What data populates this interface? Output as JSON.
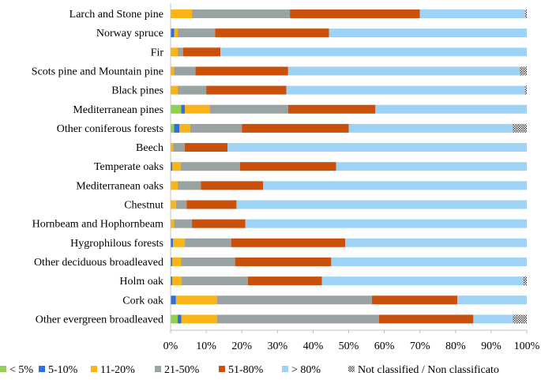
{
  "chart_data": {
    "type": "bar",
    "orientation": "horizontal",
    "stacked": "100%",
    "categories": [
      "Larch and Stone pine",
      "Norway spruce",
      "Fir",
      "Scots pine and Mountain pine",
      "Black pines",
      "Mediterranean pines",
      "Other coniferous forests",
      "Beech",
      "Temperate oaks",
      "Mediterranean oaks",
      "Chestnut",
      "Hornbeam and Hophornbeam",
      "Hygrophilous forests",
      "Other deciduous broadleaved",
      "Holm oak",
      "Cork oak",
      "Other evergreen broadleaved"
    ],
    "series": [
      {
        "name": "< 5%",
        "color": "#92d050",
        "values": [
          0,
          0,
          0,
          0,
          0,
          3,
          1,
          0,
          0,
          0,
          0,
          0,
          0,
          0,
          0,
          0,
          2
        ]
      },
      {
        "name": "5-10%",
        "color": "#2e6fe0",
        "values": [
          0,
          1,
          0,
          0,
          0,
          1,
          1.5,
          0,
          0.5,
          0,
          0,
          0,
          0.7,
          0.5,
          0.5,
          1.5,
          1
        ]
      },
      {
        "name": "11-20%",
        "color": "#fbb416",
        "values": [
          6,
          1,
          2,
          1,
          2,
          7,
          3,
          0.7,
          2.3,
          2,
          1.5,
          1,
          3.3,
          2.4,
          2.6,
          11.5,
          10
        ]
      },
      {
        "name": "21-50%",
        "color": "#9aa3a4",
        "values": [
          27.5,
          10.5,
          1.5,
          6,
          8,
          22,
          14.5,
          3.3,
          16.7,
          6.5,
          3,
          5,
          13,
          15.2,
          18.6,
          43.5,
          45.5
        ]
      },
      {
        "name": "51-80%",
        "color": "#c9510c",
        "values": [
          36.5,
          32,
          10.5,
          26,
          22.5,
          24.5,
          30,
          12,
          27,
          17.5,
          14,
          15,
          32,
          27,
          20.8,
          24,
          26.5
        ]
      },
      {
        "name": "> 80%",
        "color": "#9fd3f5",
        "values": [
          29.5,
          55.5,
          86,
          65,
          67,
          42.5,
          46,
          84,
          53.5,
          74,
          81.5,
          79,
          51,
          54.9,
          56.5,
          19.5,
          11
        ]
      },
      {
        "name": "Not classified / Non classificato",
        "color": "pattern-dots",
        "values": [
          0.5,
          0,
          0,
          2,
          0.5,
          0,
          4,
          0,
          0,
          0,
          0,
          0,
          0,
          0,
          1,
          0,
          4
        ]
      }
    ],
    "xlim": [
      0,
      100
    ],
    "xticks": [
      "0%",
      "10%",
      "20%",
      "30%",
      "40%",
      "50%",
      "60%",
      "70%",
      "80%",
      "90%",
      "100%"
    ],
    "legend_position": "bottom",
    "grid": false
  }
}
